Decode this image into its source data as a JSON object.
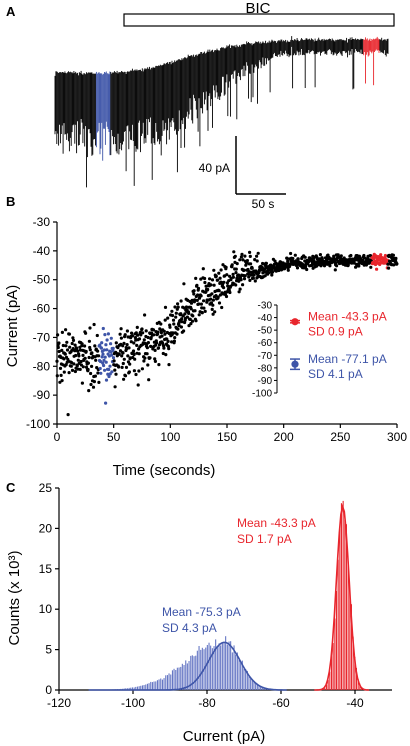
{
  "panel_labels": {
    "a": "A",
    "b": "B",
    "c": "C"
  },
  "colors": {
    "trace": "#000000",
    "red": "#e8262d",
    "blue": "#3e55a8",
    "blue_fill": "#6677c4"
  },
  "chart_data": [
    {
      "type": "line",
      "panel": "A",
      "description_labels": {
        "drug_bar": "BIC",
        "scale_y": "40 pA",
        "scale_x": "50 s"
      },
      "highlight": [
        {
          "color": "red",
          "time_range": [
            278,
            292
          ]
        },
        {
          "color": "blue",
          "time_range": [
            37,
            50
          ]
        }
      ],
      "drug_application_start_s": 60
    },
    {
      "type": "scatter",
      "panel": "B",
      "xlabel": "Time (seconds)",
      "ylabel": "Current (pA)",
      "xlim": [
        0,
        300
      ],
      "ylim": [
        -100,
        -30
      ],
      "y_inverted": true,
      "xticks": [
        0,
        50,
        100,
        150,
        200,
        250,
        300
      ],
      "yticks": [
        -30,
        -40,
        -50,
        -60,
        -70,
        -80,
        -90,
        -100
      ],
      "trend": {
        "x": [
          0,
          20,
          40,
          60,
          80,
          100,
          120,
          140,
          160,
          180,
          200,
          220,
          240,
          260,
          280,
          300
        ],
        "y": [
          -76,
          -77,
          -77,
          -76,
          -73,
          -68,
          -61,
          -55,
          -50,
          -47,
          -45,
          -44,
          -43.6,
          -43.4,
          -43.3,
          -43.3
        ]
      },
      "series": [
        {
          "name": "Mean -43.3 pA SD 0.9 pA",
          "color": "red",
          "x_range": [
            278,
            292
          ],
          "mean": -43.3,
          "sd": 0.9
        },
        {
          "name": "Mean -77.1 pA SD 4.1 pA",
          "color": "blue",
          "x_range": [
            37,
            50
          ],
          "mean": -77.1,
          "sd": 4.1
        }
      ],
      "inset": {
        "yticks": [
          -30,
          -40,
          -50,
          -60,
          -70,
          -80,
          -90,
          -100
        ],
        "ylim": [
          -100,
          -30
        ],
        "points": [
          {
            "color": "red",
            "mean": -43.3,
            "sd": 0.9,
            "label_line1": "Mean -43.3 pA",
            "label_line2": "SD 0.9 pA"
          },
          {
            "color": "blue",
            "mean": -77.1,
            "sd": 4.1,
            "label_line1": "Mean -77.1 pA",
            "label_line2": "SD 4.1 pA"
          }
        ]
      }
    },
    {
      "type": "bar",
      "panel": "C",
      "xlabel": "Current (pA)",
      "ylabel": "Counts (x 10³)",
      "xlim": [
        -120,
        -30
      ],
      "ylim": [
        0,
        25
      ],
      "xticks": [
        -120,
        -100,
        -80,
        -60,
        -40
      ],
      "yticks": [
        0,
        5,
        10,
        15,
        20,
        25
      ],
      "series": [
        {
          "name": "Mean -75.3 pA SD 4.3 pA",
          "color": "blue",
          "mean": -75.3,
          "sd": 4.3,
          "peak_counts_k": 5.9,
          "label_line1": "Mean -75.3 pA",
          "label_line2": "SD 4.3 pA"
        },
        {
          "name": "Mean -43.3 pA SD 1.7 pA",
          "color": "red",
          "mean": -43.3,
          "sd": 1.7,
          "peak_counts_k": 22.7,
          "label_line1": "Mean -43.3 pA",
          "label_line2": "SD 1.7 pA"
        }
      ]
    }
  ]
}
